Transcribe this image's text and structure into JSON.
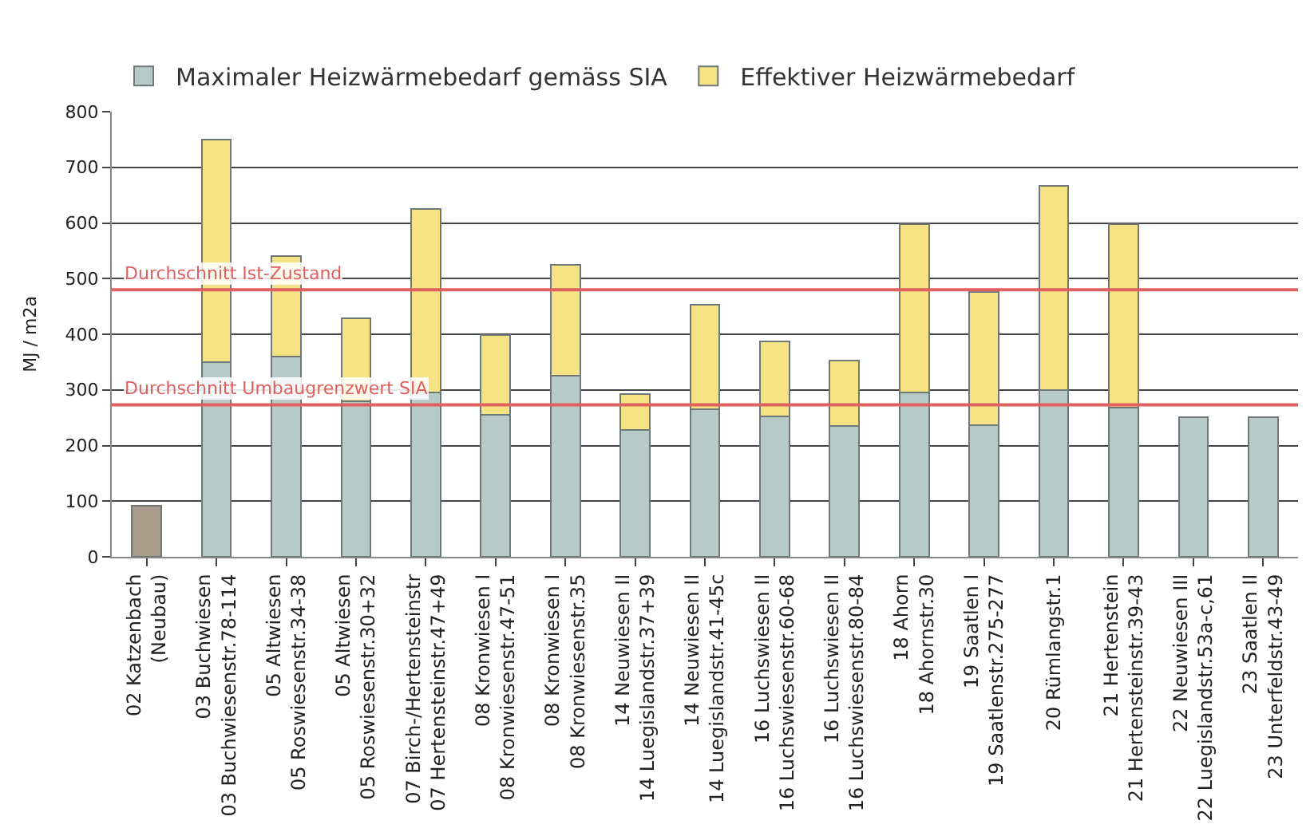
{
  "chart_data": {
    "type": "bar",
    "stacked": true,
    "ylabel": "MJ / m2a",
    "categories": [
      "02 Katzenbach\n(Neubau)",
      "03 Buchwiesen\n03 Buchwiesenstr.78-114",
      "05 Altwiesen\n05 Roswiesenstr.34-38",
      "05 Altwiesen\n05 Roswiesenstr.30+32",
      "07 Birch-/Hertensteinstr\n07 Hertensteinstr.47+49",
      "08 Kronwiesen I\n08 Kronwiesenstr.47-51",
      "08 Kronwiesen I\n08 Kronwiesenstr.35",
      "14 Neuwiesen II\n14 Luegislandstr.37+39",
      "14 Neuwiesen II\n14 Luegislandstr.41-45c",
      "16 Luchswiesen II\n16 Luchswiesenstr.60-68",
      "16 Luchswiesen II\n16 Luchswiesenstr.80-84",
      "18 Ahorn\n18 Ahornstr.30",
      "19 Saatlen I\n19 Saatlenstr.275-277",
      "20 Rümlangstr.1",
      "21 Hertenstein\n21 Hertensteinstr.39-43",
      "22 Neuwiesen III\n22 Luegislandstr.53a-c,61",
      "23 Saatlen II\n23 Unterfeldstr.43-49"
    ],
    "series": [
      {
        "name": "Maximaler Heizwärmebedarf gemäss SIA",
        "color": "#b7cac8",
        "colors": [
          "#a89c8a",
          "#b7cac8",
          "#b7cac8",
          "#b7cac8",
          "#b7cac8",
          "#b7cac8",
          "#b7cac8",
          "#b7cac8",
          "#b7cac8",
          "#b7cac8",
          "#b7cac8",
          "#b7cac8",
          "#b7cac8",
          "#b7cac8",
          "#b7cac8",
          "#b7cac8",
          "#b7cac8"
        ],
        "values": [
          92,
          350,
          360,
          280,
          295,
          255,
          325,
          228,
          265,
          252,
          235,
          295,
          237,
          300,
          268,
          251,
          251
        ]
      },
      {
        "name": "Effektiver Heizwärmebedarf",
        "color": "#f6e384",
        "values": [
          null,
          400,
          180,
          148,
          330,
          143,
          200,
          64,
          188,
          135,
          117,
          303,
          239,
          366,
          330,
          null,
          null
        ]
      }
    ],
    "ylim": [
      0,
      800
    ],
    "yticks": [
      0,
      100,
      200,
      300,
      400,
      500,
      600,
      700,
      800
    ],
    "grid": "y",
    "legend": "top",
    "ref_lines": [
      {
        "axis": "y",
        "value": 480,
        "label": "Durchschnitt Ist-Zustand",
        "color": "#e06060"
      },
      {
        "axis": "y",
        "value": 273,
        "label": "Durchschnitt Umbaugrenzwert SIA",
        "color": "#e06060"
      }
    ]
  }
}
